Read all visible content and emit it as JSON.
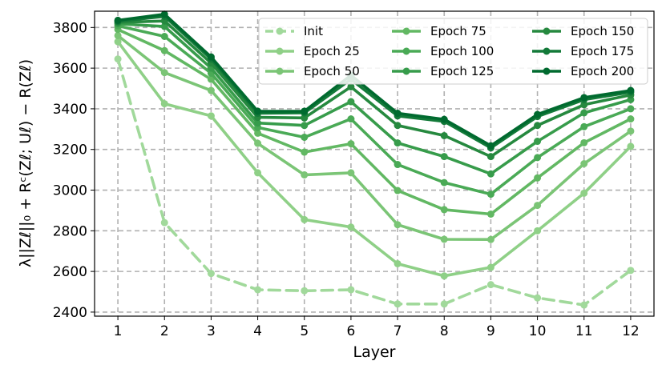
{
  "chart_data": {
    "type": "line",
    "xlabel": "Layer",
    "ylabel": "λ||Zℓ||₀ + Rᶜ(Zℓ; Uℓ) − R(Zℓ)",
    "x": [
      1,
      2,
      3,
      4,
      5,
      6,
      7,
      8,
      9,
      10,
      11,
      12
    ],
    "xlim": [
      0.5,
      12.5
    ],
    "ylim": [
      2380,
      3880
    ],
    "yticks": [
      2400,
      2600,
      2800,
      3000,
      3200,
      3400,
      3600,
      3800
    ],
    "grid": true,
    "legend_position": "top-right",
    "series": [
      {
        "name": "Init",
        "color": "#a1d99b",
        "dashed": true,
        "values": [
          3645,
          2840,
          2590,
          2510,
          2505,
          2510,
          2440,
          2440,
          2535,
          2470,
          2435,
          2605
        ]
      },
      {
        "name": "Epoch 25",
        "color": "#8fd087",
        "dashed": false,
        "values": [
          3730,
          3425,
          3365,
          3085,
          2855,
          2818,
          2638,
          2578,
          2620,
          2800,
          2985,
          3215
        ]
      },
      {
        "name": "Epoch 50",
        "color": "#7bc576",
        "dashed": false,
        "values": [
          3760,
          3578,
          3490,
          3230,
          3075,
          3085,
          2830,
          2758,
          2757,
          2925,
          3130,
          3290
        ]
      },
      {
        "name": "Epoch 75",
        "color": "#62b863",
        "dashed": false,
        "values": [
          3790,
          3686,
          3545,
          3280,
          3187,
          3228,
          2998,
          2904,
          2882,
          3060,
          3233,
          3350
        ]
      },
      {
        "name": "Epoch 100",
        "color": "#4aaa56",
        "dashed": false,
        "values": [
          3808,
          3756,
          3575,
          3308,
          3260,
          3350,
          3126,
          3037,
          2980,
          3160,
          3312,
          3400
        ]
      },
      {
        "name": "Epoch 125",
        "color": "#379c4b",
        "dashed": false,
        "values": [
          3818,
          3805,
          3600,
          3330,
          3318,
          3435,
          3232,
          3165,
          3080,
          3240,
          3380,
          3445
        ]
      },
      {
        "name": "Epoch 150",
        "color": "#26893f",
        "dashed": false,
        "values": [
          3825,
          3832,
          3625,
          3358,
          3355,
          3508,
          3318,
          3268,
          3165,
          3318,
          3420,
          3468
        ]
      },
      {
        "name": "Epoch 175",
        "color": "#137a39",
        "dashed": false,
        "values": [
          3830,
          3855,
          3645,
          3378,
          3380,
          3545,
          3365,
          3338,
          3208,
          3362,
          3445,
          3482
        ]
      },
      {
        "name": "Epoch 200",
        "color": "#006a2f",
        "dashed": false,
        "values": [
          3835,
          3865,
          3655,
          3388,
          3388,
          3565,
          3378,
          3348,
          3218,
          3372,
          3455,
          3490
        ]
      }
    ]
  }
}
